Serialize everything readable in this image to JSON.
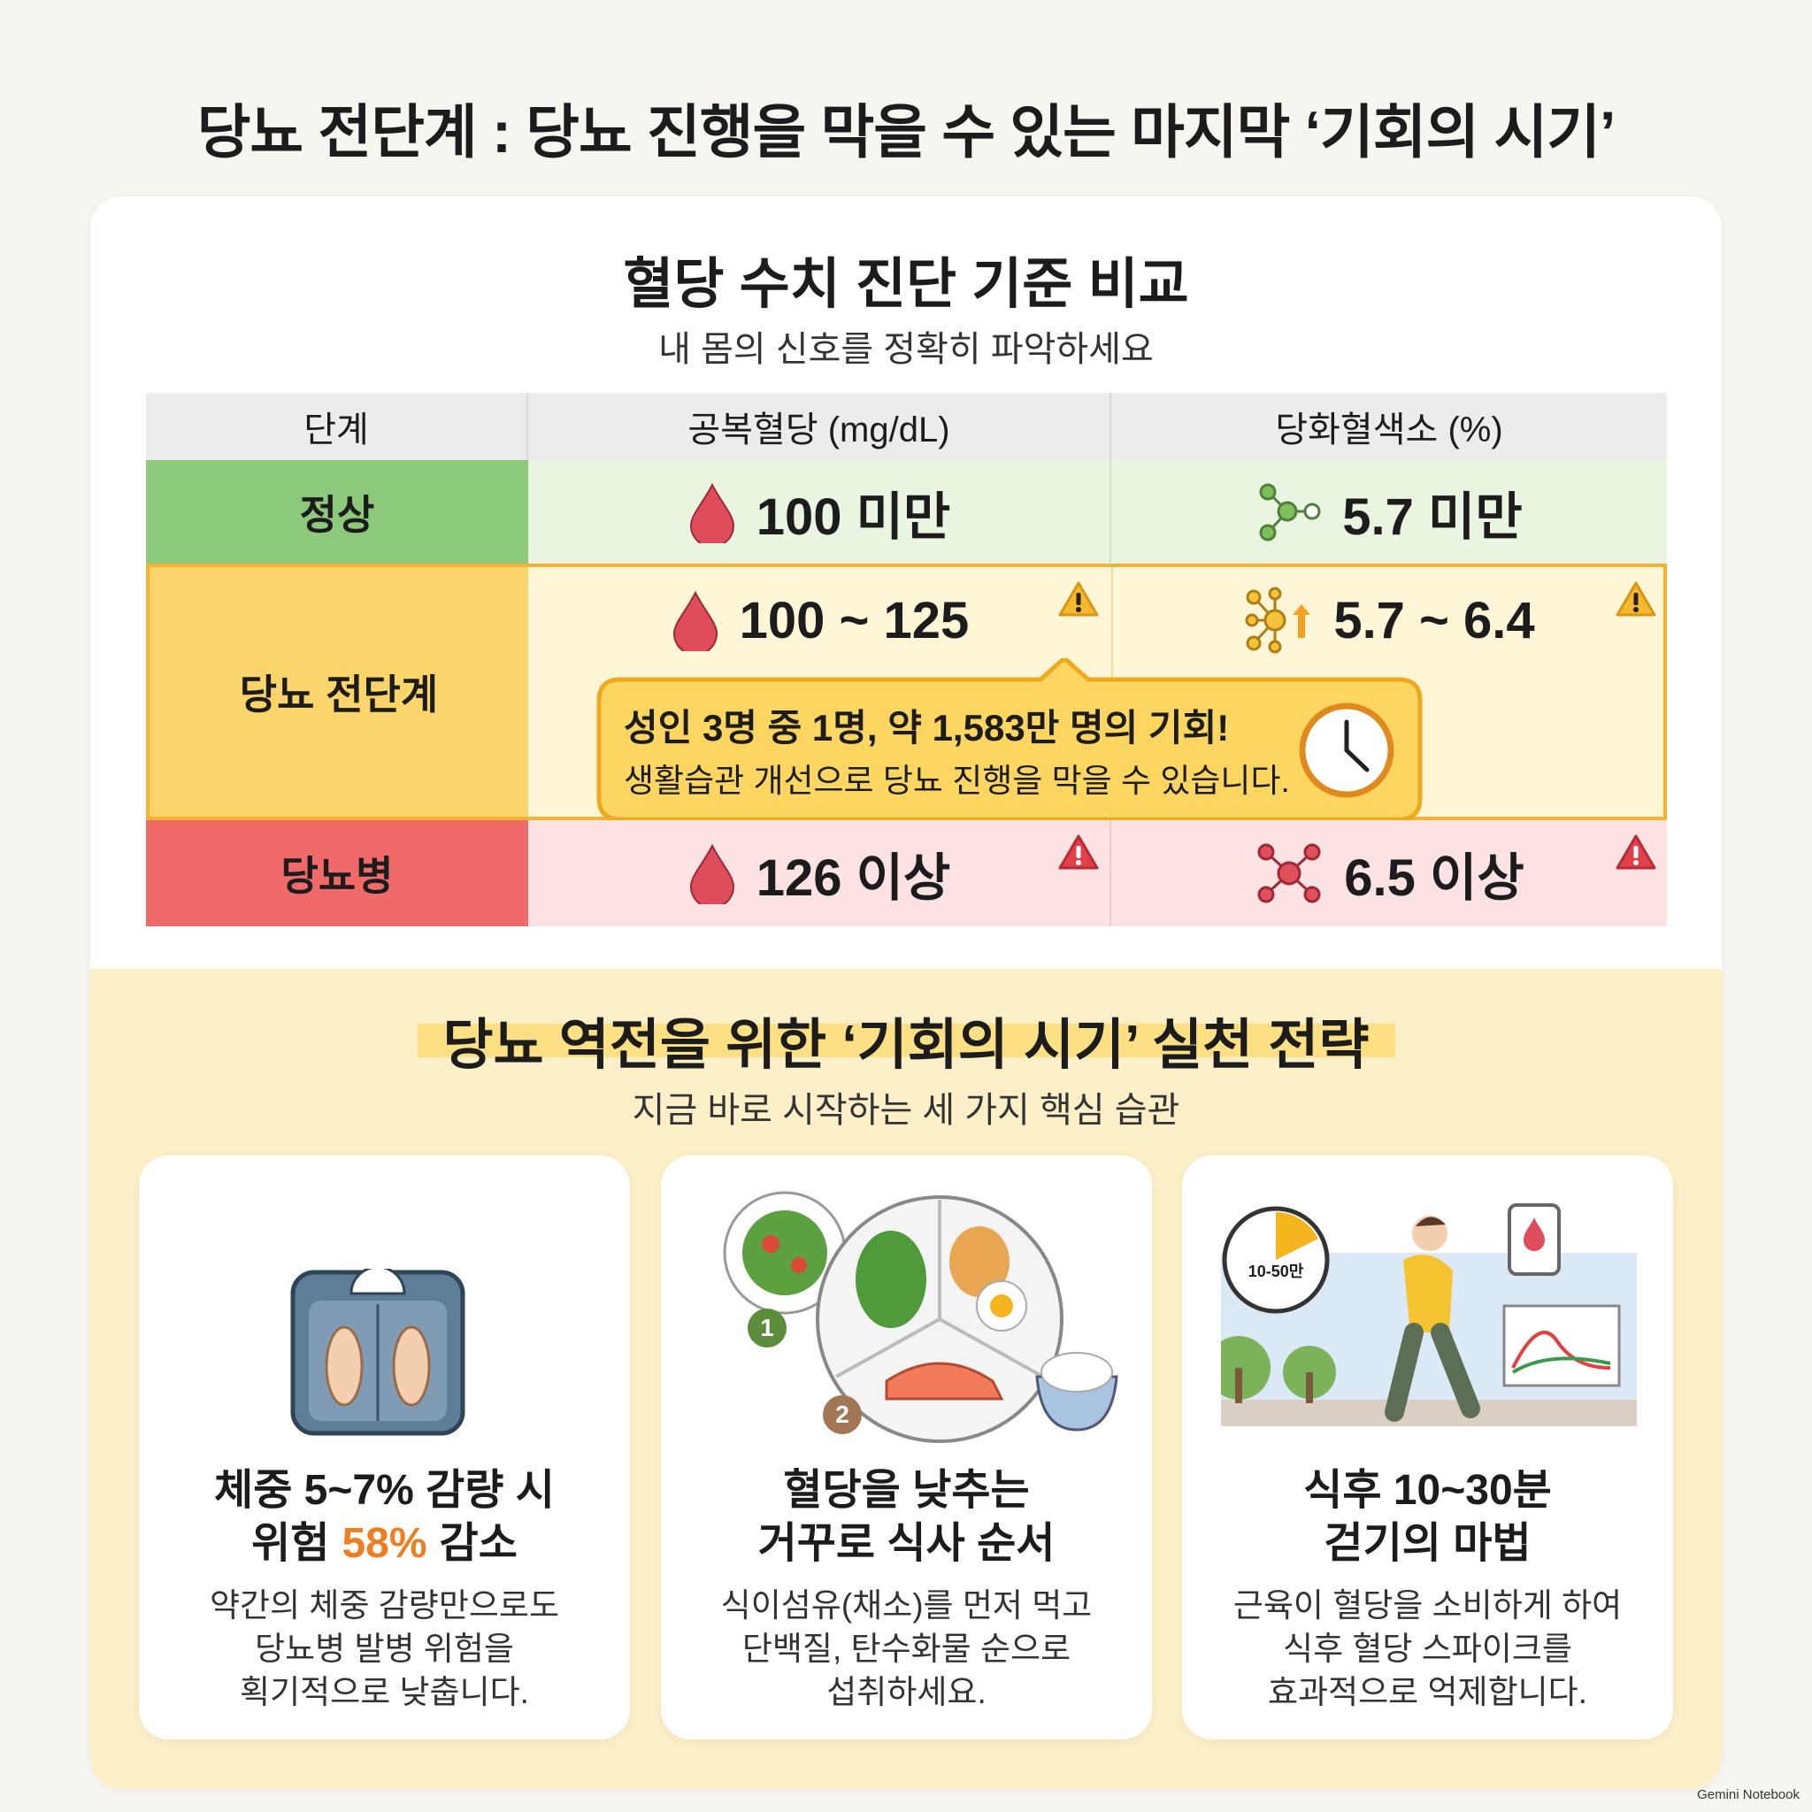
{
  "title": "당뇨 전단계 : 당뇨 진행을 막을 수 있는 마지막 ‘기회의 시기’",
  "comparison": {
    "title": "혈당 수치 진단 기준 비교",
    "subtitle": "내 몸의 신호를 정확히 파악하세요",
    "headers": [
      "단계",
      "공복혈당 (mg/dL)",
      "당화혈색소 (%)"
    ],
    "rows": [
      {
        "stage": "정상",
        "fasting": "100 미만",
        "hba1c": "5.7 미만"
      },
      {
        "stage": "당뇨 전단계",
        "fasting": "100 ~ 125",
        "hba1c": "5.7 ~ 6.4"
      },
      {
        "stage": "당뇨병",
        "fasting": "126 이상",
        "hba1c": "6.5 이상"
      }
    ],
    "callout": {
      "headline": "성인 3명 중 1명, 약 1,583만 명의 기회!",
      "text": "생활습관 개선으로 당뇨 진행을 막을 수 있습니다."
    }
  },
  "strategy": {
    "title": "당뇨 역전을 위한 ‘기회의 시기’ 실천 전략",
    "subtitle": "지금 바로 시작하는 세 가지 핵심 습관",
    "cards": [
      {
        "title_line1": "체중 5~7% 감량 시",
        "title_line2": [
          "위험",
          "58%",
          "감소"
        ],
        "body": [
          "약간의 체중 감량만으로도",
          "당뇨병 발병 위험을",
          "획기적으로 낮춥니다."
        ]
      },
      {
        "title_line1": "혈당을 낮추는",
        "title_line2": [
          "거꾸로 식사 순서"
        ],
        "body": [
          "식이섬유(채소)를 먼저 먹고",
          "단백질, 탄수화물 순으로",
          "섭취하세요."
        ]
      },
      {
        "title_line1": "식후 10~30분",
        "title_line2": [
          "걷기의 마법"
        ],
        "body": [
          "근육이 혈당을 소비하게 하여",
          "식후 혈당 스파이크를",
          "효과적으로 억제합니다."
        ]
      }
    ],
    "illustration": {
      "step1": "1",
      "step2": "2",
      "clock": "10-50만"
    }
  },
  "watermark": "Gemini Notebook"
}
